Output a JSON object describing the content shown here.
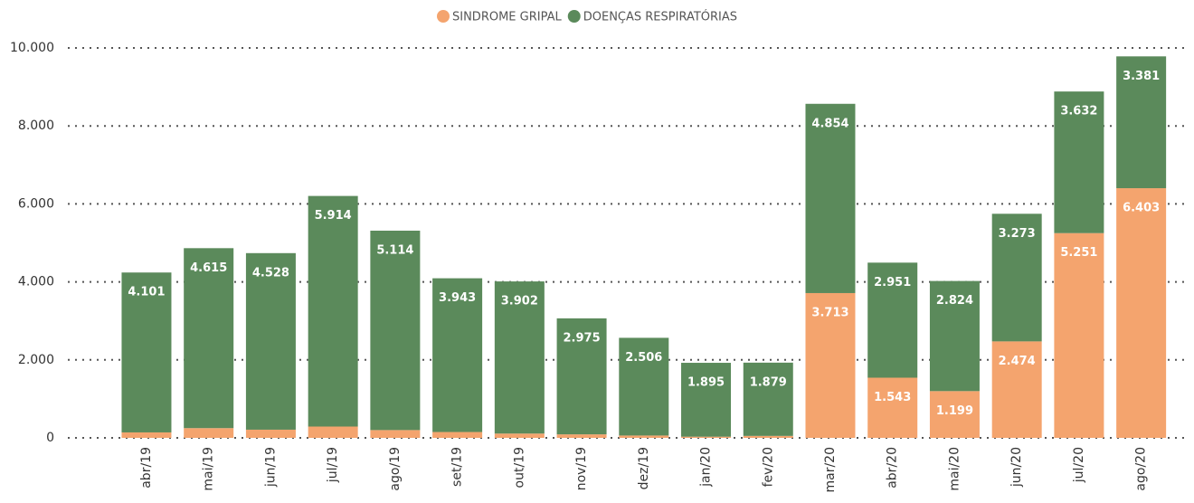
{
  "chart_data": {
    "type": "stacked_bar",
    "categories": [
      "abr/19",
      "mai/19",
      "jun/19",
      "jul/19",
      "ago/19",
      "set/19",
      "out/19",
      "nov/19",
      "dez/19",
      "jan/20",
      "fev/20",
      "mar/20",
      "abr/20",
      "mai/20",
      "jun/20",
      "jul/20",
      "ago/20"
    ],
    "series": [
      {
        "name": "SINDROME GRIPAL",
        "color": "#f4a46e",
        "values": [
          140,
          250,
          210,
          290,
          200,
          150,
          110,
          90,
          60,
          30,
          50,
          3713,
          1543,
          1199,
          2474,
          5251,
          6403
        ],
        "value_labels": [
          null,
          null,
          null,
          null,
          null,
          null,
          null,
          null,
          null,
          null,
          null,
          "3.713",
          "1.543",
          "1.199",
          "2.474",
          "5.251",
          "6.403"
        ]
      },
      {
        "name": "DOENÇAS RESPIRATÓRIAS",
        "color": "#5b8a5b",
        "values": [
          4101,
          4615,
          4528,
          5914,
          5114,
          3943,
          3902,
          2975,
          2506,
          1895,
          1879,
          4854,
          2951,
          2824,
          3273,
          3632,
          3381
        ],
        "value_labels": [
          "4.101",
          "4.615",
          "4.528",
          "5.914",
          "5.114",
          "3.943",
          "3.902",
          "2.975",
          "2.506",
          "1.895",
          "1.879",
          "4.854",
          "2.951",
          "2.824",
          "3.273",
          "3.632",
          "3.381"
        ]
      }
    ],
    "ylim": [
      0,
      10000
    ],
    "yticks": [
      0,
      {
        "value": 2000,
        "label": "2.000"
      },
      {
        "value": 4000,
        "label": "4.000"
      },
      {
        "value": 6000,
        "label": "6.000"
      },
      {
        "value": 8000,
        "label": "8.000"
      },
      {
        "value": 10000,
        "label": "10.000"
      }
    ],
    "grid": true,
    "legend": "top"
  }
}
